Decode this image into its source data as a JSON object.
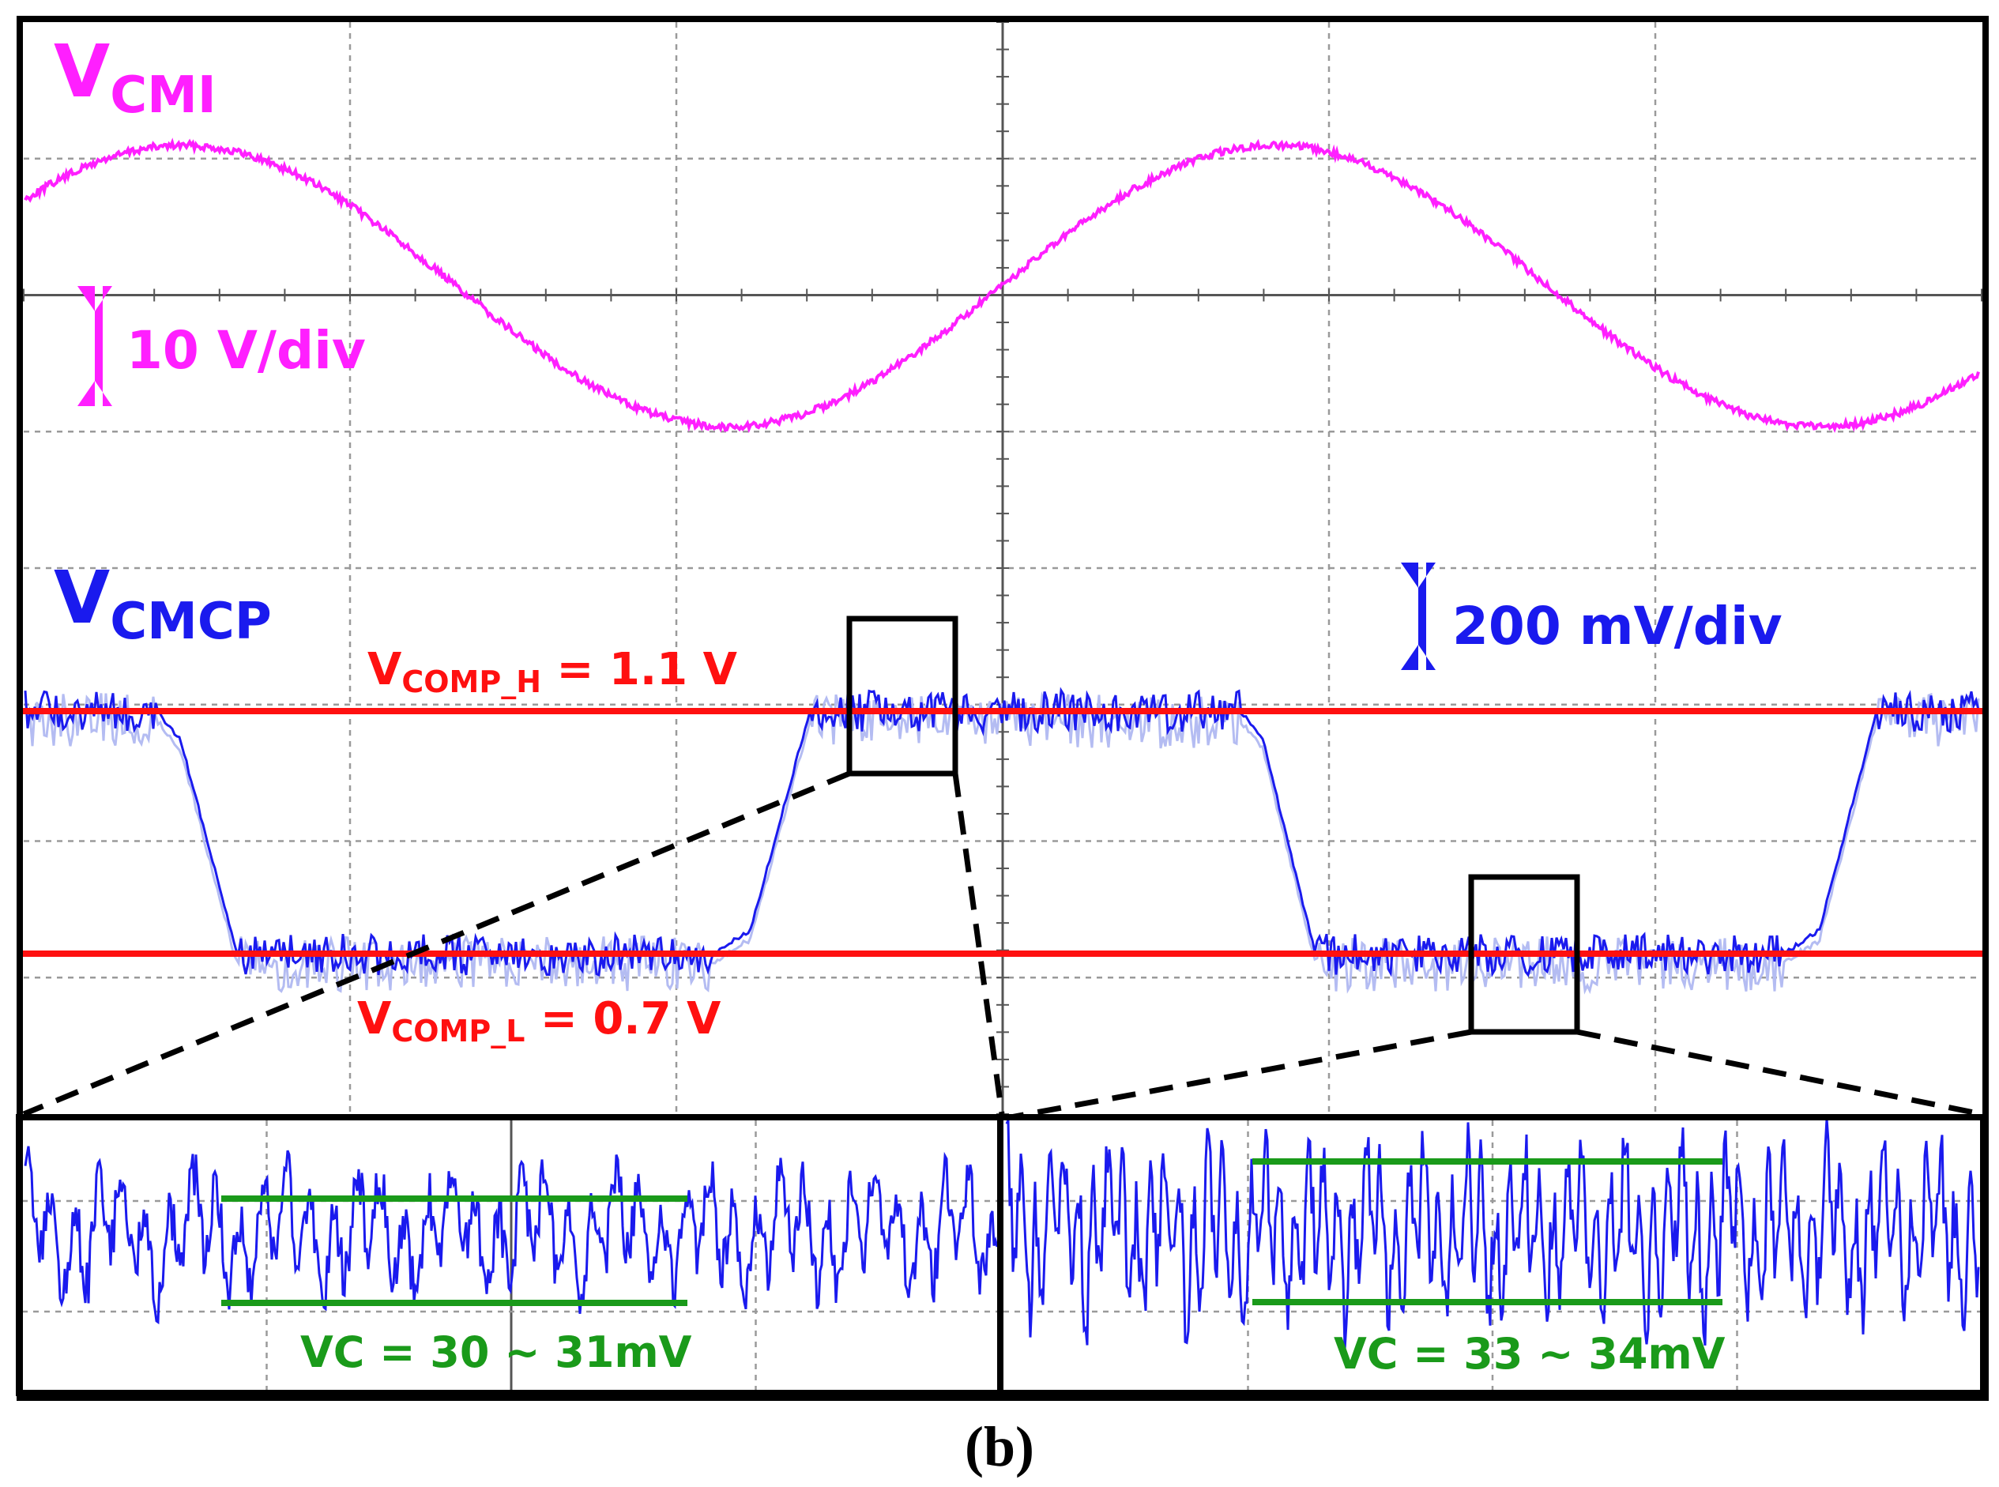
{
  "caption": "(b)",
  "colors": {
    "vcmi": "#ff1fff",
    "vcmp": "#1a1aee",
    "vcmp_ghost": "#b4bcf2",
    "threshold": "#ff1010",
    "ripple_band": "#1a9a1a",
    "grid": "#9a9a9a",
    "frame": "#000000"
  },
  "chart_data": {
    "type": "line",
    "title": "",
    "xlabel": "",
    "ylabel": "",
    "grid": true,
    "grid_divisions": {
      "x": 6,
      "y": 8
    },
    "series": [
      {
        "name": "VCMI",
        "label_main": "V",
        "label_sub": "CMI",
        "scale_label": "10 V/div",
        "shape": "sine",
        "cycles_on_screen": 1.85,
        "peak_to_peak_div": 2.0,
        "phase_at_zero_cross_div": 3.0
      },
      {
        "name": "VCMCP",
        "label_main": "V",
        "label_sub": "CMCP",
        "scale_label": "200 mV/div",
        "shape": "square-like comparator output toggling between VCOMP_H and VCOMP_L",
        "high_level_V": 1.1,
        "low_level_V": 0.7
      }
    ],
    "thresholds": [
      {
        "name": "VCOMP_H",
        "label_main": "V",
        "label_sub": "COMP_H",
        "label_value": " = 1.1 V",
        "value_V": 1.1
      },
      {
        "name": "VCOMP_L",
        "label_main": "V",
        "label_sub": "COMP_L",
        "label_value": " = 0.7 V",
        "value_V": 0.7
      }
    ],
    "zoom_insets": [
      {
        "name": "zoom-high-level",
        "source": "VCMCP high level",
        "ripple_label": "VC = 30 ~ 31mV",
        "ripple_mV": [
          30,
          31
        ]
      },
      {
        "name": "zoom-low-level",
        "source": "VCMCP low level",
        "ripple_label": "VC = 33 ~ 34mV",
        "ripple_mV": [
          33,
          34
        ]
      }
    ]
  }
}
